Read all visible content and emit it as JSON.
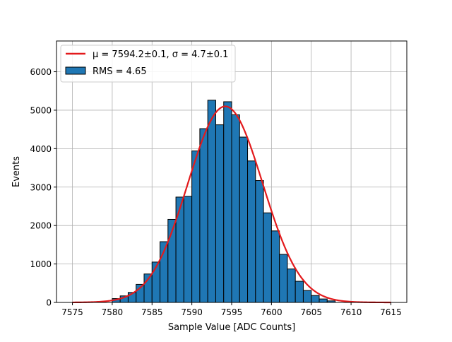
{
  "chart_data": {
    "type": "bar",
    "xlabel": "Sample Value [ADC Counts]",
    "ylabel": "Events",
    "xlim": [
      7573.0,
      7617.0
    ],
    "ylim": [
      0,
      6800
    ],
    "grid": true,
    "legend_position": "top-left",
    "x_ticks": [
      7575,
      7580,
      7585,
      7590,
      7595,
      7600,
      7605,
      7610,
      7615
    ],
    "x_tick_labels": [
      "7575",
      "7580",
      "7585",
      "7590",
      "7595",
      "7600",
      "7605",
      "7610",
      "7615"
    ],
    "y_ticks": [
      0,
      1000,
      2000,
      3000,
      4000,
      5000,
      6000
    ],
    "y_tick_labels": [
      "0",
      "1000",
      "2000",
      "3000",
      "4000",
      "5000",
      "6000"
    ],
    "histogram": {
      "name": "RMS = 4.65",
      "color": "#1f77b4",
      "edge_color": "#000000",
      "bins": [
        {
          "x0": 7580.0,
          "x1": 7581.0,
          "count": 100
        },
        {
          "x0": 7581.0,
          "x1": 7582.0,
          "count": 170
        },
        {
          "x0": 7582.0,
          "x1": 7583.0,
          "count": 260
        },
        {
          "x0": 7583.0,
          "x1": 7584.0,
          "count": 470
        },
        {
          "x0": 7584.0,
          "x1": 7585.0,
          "count": 740
        },
        {
          "x0": 7585.0,
          "x1": 7586.0,
          "count": 1050
        },
        {
          "x0": 7586.0,
          "x1": 7587.0,
          "count": 1580
        },
        {
          "x0": 7587.0,
          "x1": 7588.0,
          "count": 2160
        },
        {
          "x0": 7588.0,
          "x1": 7589.0,
          "count": 2740
        },
        {
          "x0": 7589.0,
          "x1": 7590.0,
          "count": 2760
        },
        {
          "x0": 7590.0,
          "x1": 7591.0,
          "count": 3940
        },
        {
          "x0": 7591.0,
          "x1": 7592.0,
          "count": 4520
        },
        {
          "x0": 7592.0,
          "x1": 7593.0,
          "count": 5260
        },
        {
          "x0": 7593.0,
          "x1": 7594.0,
          "count": 4620
        },
        {
          "x0": 7594.0,
          "x1": 7595.0,
          "count": 5220
        },
        {
          "x0": 7595.0,
          "x1": 7596.0,
          "count": 4880
        },
        {
          "x0": 7596.0,
          "x1": 7597.0,
          "count": 4300
        },
        {
          "x0": 7597.0,
          "x1": 7598.0,
          "count": 3680
        },
        {
          "x0": 7598.0,
          "x1": 7599.0,
          "count": 3170
        },
        {
          "x0": 7599.0,
          "x1": 7600.0,
          "count": 2330
        },
        {
          "x0": 7600.0,
          "x1": 7601.0,
          "count": 1860
        },
        {
          "x0": 7601.0,
          "x1": 7602.0,
          "count": 1250
        },
        {
          "x0": 7602.0,
          "x1": 7603.0,
          "count": 870
        },
        {
          "x0": 7603.0,
          "x1": 7604.0,
          "count": 550
        },
        {
          "x0": 7604.0,
          "x1": 7605.0,
          "count": 310
        },
        {
          "x0": 7605.0,
          "x1": 7606.0,
          "count": 180
        },
        {
          "x0": 7606.0,
          "x1": 7607.0,
          "count": 90
        },
        {
          "x0": 7607.0,
          "x1": 7608.0,
          "count": 40
        }
      ]
    },
    "fit": {
      "label": "μ = 7594.2±0.1, σ = 4.7±0.1",
      "color": "#e31a1c",
      "amplitude": 5100,
      "mu": 7594.2,
      "sigma": 4.7,
      "x_range": [
        7575,
        7615
      ]
    }
  }
}
